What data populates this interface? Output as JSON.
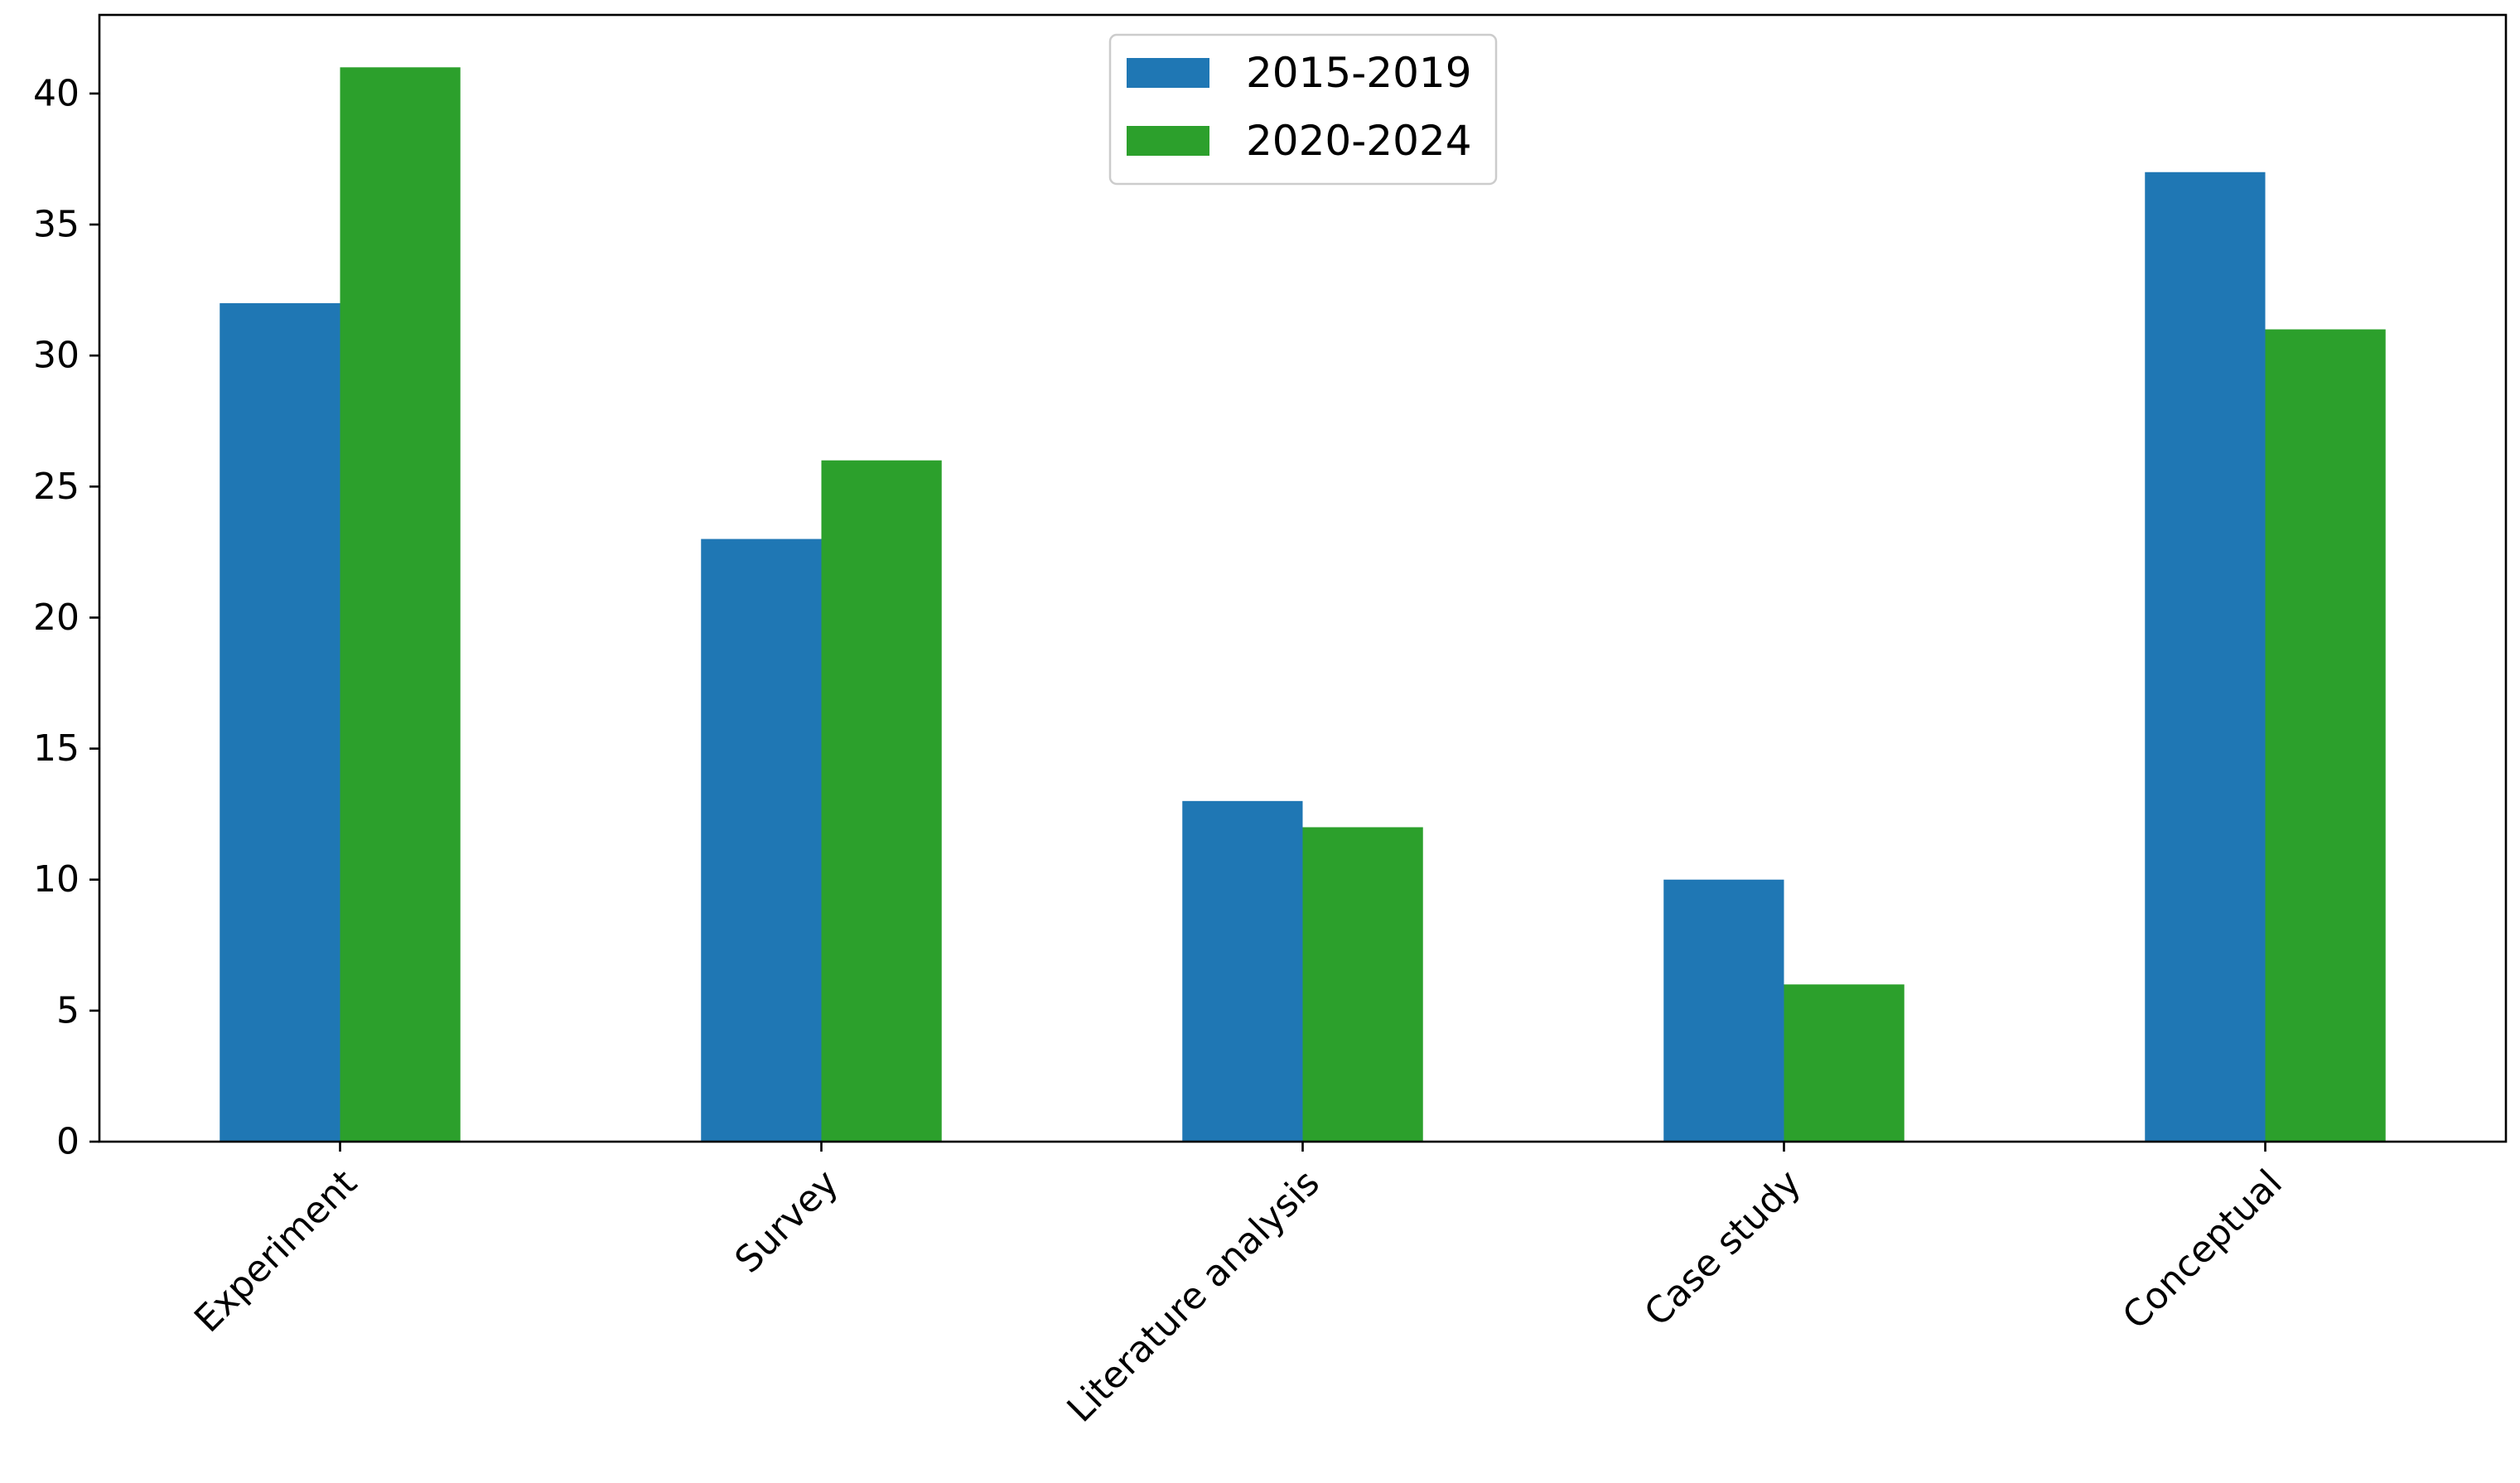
{
  "chart_data": {
    "type": "bar",
    "title": "",
    "xlabel": "",
    "ylabel": "",
    "categories": [
      "Experiment",
      "Survey",
      "Literature analysis",
      "Case study",
      "Conceptual"
    ],
    "series": [
      {
        "name": "2015-2019",
        "color": "#1f77b4",
        "values": [
          32,
          23,
          13,
          10,
          37
        ]
      },
      {
        "name": "2020-2024",
        "color": "#2ca02c",
        "values": [
          41,
          26,
          12,
          6,
          31
        ]
      }
    ],
    "ylim": [
      0,
      43
    ],
    "yticks": [
      0,
      5,
      10,
      15,
      20,
      25,
      30,
      35,
      40
    ],
    "grid": false,
    "legend_position": "top-center"
  }
}
